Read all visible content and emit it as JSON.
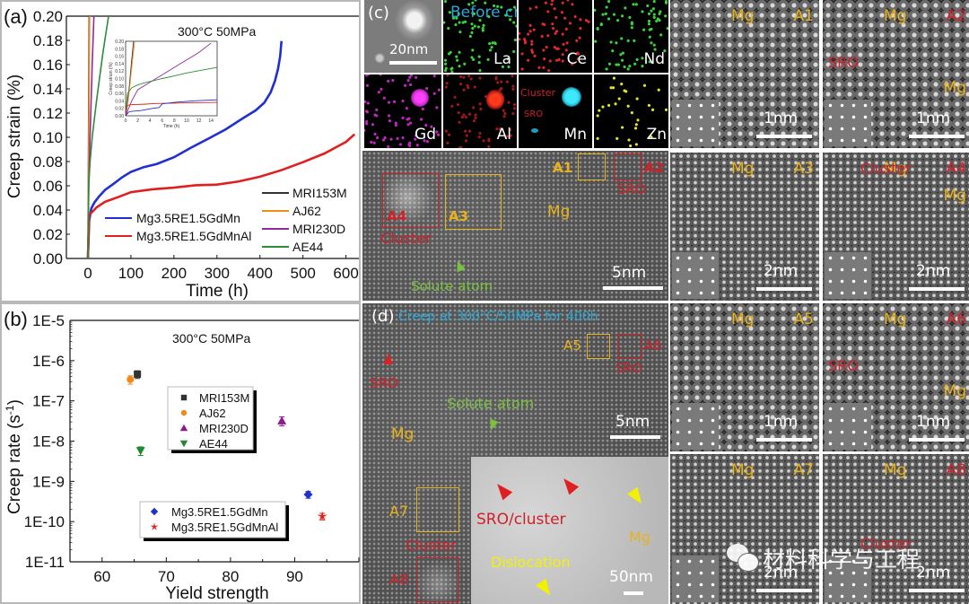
{
  "figure": {
    "panel_labels": {
      "a": "(a)",
      "b": "(b)",
      "c": "(c)",
      "d": "(d)"
    },
    "watermark": "材料科学与工程"
  },
  "chart_data": [
    {
      "id": "a",
      "type": "line",
      "title": "300°C 50MPa",
      "xlabel": "Time (h)",
      "ylabel": "Creep strain (%)",
      "xlim": [
        -50,
        630
      ],
      "ylim": [
        0,
        0.2
      ],
      "xticks": [
        0,
        100,
        200,
        300,
        400,
        500,
        600
      ],
      "yticks": [
        0.0,
        0.02,
        0.04,
        0.06,
        0.08,
        0.1,
        0.12,
        0.14,
        0.16,
        0.18,
        0.2
      ],
      "ytick_labels": [
        "0.00",
        "0.02",
        "0.04",
        "0.06",
        "0.08",
        "0.10",
        "0.12",
        "0.14",
        "0.16",
        "0.18",
        "0.20"
      ],
      "series": [
        {
          "name": "Mg3.5RE1.5GdMn",
          "color": "#1f2fd0",
          "x": [
            0,
            3,
            8,
            15,
            25,
            40,
            60,
            80,
            100,
            130,
            160,
            200,
            240,
            280,
            320,
            360,
            390,
            410,
            425,
            435,
            442,
            447,
            450
          ],
          "y": [
            0,
            0.03,
            0.04,
            0.046,
            0.052,
            0.058,
            0.062,
            0.066,
            0.07,
            0.075,
            0.079,
            0.085,
            0.092,
            0.098,
            0.105,
            0.115,
            0.123,
            0.13,
            0.138,
            0.146,
            0.155,
            0.166,
            0.18
          ]
        },
        {
          "name": "Mg3.5RE1.5GdMnAl",
          "color": "#e02020",
          "x": [
            0,
            3,
            10,
            20,
            40,
            70,
            100,
            150,
            200,
            250,
            300,
            350,
            400,
            450,
            500,
            550,
            600,
            620
          ],
          "y": [
            0,
            0.035,
            0.037,
            0.042,
            0.048,
            0.052,
            0.055,
            0.056,
            0.057,
            0.06,
            0.062,
            0.065,
            0.068,
            0.072,
            0.078,
            0.086,
            0.097,
            0.104
          ]
        },
        {
          "name": "MRI153M",
          "color": "#333333",
          "x": [
            0,
            1,
            2,
            3
          ],
          "y": [
            0,
            0.06,
            0.14,
            0.2
          ]
        },
        {
          "name": "AJ62",
          "color": "#f08a1c",
          "x": [
            0,
            1,
            2,
            3,
            4
          ],
          "y": [
            0,
            0.05,
            0.1,
            0.15,
            0.2
          ]
        },
        {
          "name": "MRI230D",
          "color": "#8e2a9e",
          "x": [
            0,
            2,
            5,
            10,
            14
          ],
          "y": [
            0,
            0.06,
            0.1,
            0.16,
            0.2
          ]
        },
        {
          "name": "AE44",
          "color": "#2e8b3a",
          "x": [
            0,
            2,
            5,
            10,
            20,
            35,
            48
          ],
          "y": [
            0,
            0.06,
            0.08,
            0.1,
            0.13,
            0.17,
            0.2
          ]
        }
      ],
      "legends": [
        {
          "position": "bottom-center",
          "entries": [
            "Mg3.5RE1.5GdMn",
            "Mg3.5RE1.5GdMnAl"
          ]
        },
        {
          "position": "bottom-right",
          "entries": [
            "MRI153M",
            "AJ62",
            "MRI230D",
            "AE44"
          ]
        }
      ],
      "inset": {
        "xlabel": "Time (h)",
        "ylabel": "Creep strain (%)",
        "xlim": [
          0,
          15
        ],
        "ylim": [
          0,
          0.2
        ],
        "xticks": [
          0,
          2,
          4,
          6,
          8,
          10,
          12,
          14
        ],
        "yticks": [
          0.0,
          0.02,
          0.04,
          0.06,
          0.08,
          0.1,
          0.12,
          0.14,
          0.16,
          0.18,
          0.2
        ],
        "ytick_labels": [
          "0.00",
          "0.02",
          "0.04",
          "0.06",
          "0.08",
          "0.10",
          "0.12",
          "0.14",
          "0.16",
          "0.18",
          "0.20"
        ],
        "series": [
          {
            "name": "MRI153M",
            "color": "#333333",
            "x": [
              0,
              0.5,
              1.0,
              1.3
            ],
            "y": [
              0,
              0.06,
              0.15,
              0.2
            ]
          },
          {
            "name": "AJ62",
            "color": "#f08a1c",
            "x": [
              0,
              0.5,
              1.0,
              1.5
            ],
            "y": [
              0,
              0.05,
              0.13,
              0.2
            ]
          },
          {
            "name": "MRI230D",
            "color": "#8e2a9e",
            "x": [
              0,
              1,
              2,
              4,
              6,
              8,
              10,
              12,
              14
            ],
            "y": [
              0,
              0.04,
              0.07,
              0.09,
              0.11,
              0.13,
              0.15,
              0.17,
              0.195
            ]
          },
          {
            "name": "AE44",
            "color": "#2e8b3a",
            "x": [
              0,
              0.3,
              1,
              2,
              3,
              4,
              6,
              8,
              10,
              12,
              15
            ],
            "y": [
              0,
              0.06,
              0.075,
              0.083,
              0.088,
              0.092,
              0.1,
              0.107,
              0.115,
              0.121,
              0.13
            ]
          },
          {
            "name": "Mg3.5RE1.5GdMnAl",
            "color": "#e02020",
            "x": [
              0,
              0.3,
              1,
              3,
              5,
              8,
              11,
              15
            ],
            "y": [
              0,
              0.028,
              0.03,
              0.031,
              0.033,
              0.034,
              0.035,
              0.036
            ]
          },
          {
            "name": "Mg3.5RE1.5GdMn",
            "color": "#1f2fd0",
            "x": [
              0,
              0.5,
              1,
              2.5,
              4.5,
              5.5,
              6,
              8,
              11,
              15
            ],
            "y": [
              0,
              0.01,
              0.012,
              0.014,
              0.02,
              0.022,
              0.032,
              0.036,
              0.04,
              0.043
            ]
          }
        ]
      }
    },
    {
      "id": "b",
      "type": "scatter",
      "title": "300°C 50MPa",
      "xlabel": "Yield strength",
      "ylabel": "Creep rate (s-1)",
      "yscale": "log",
      "xlim": [
        55,
        100
      ],
      "ylim": [
        1e-11,
        1e-05
      ],
      "xticks": [
        60,
        70,
        80,
        90
      ],
      "ytick_labels": [
        "1E-11",
        "1E-10",
        "1E-9",
        "1E-8",
        "1E-7",
        "1E-6",
        "1E-5"
      ],
      "series": [
        {
          "name": "MRI153M",
          "color": "#333333",
          "marker": "square",
          "x": [
            65.5
          ],
          "y": [
            4.6e-07
          ],
          "err_low": [
            3.6e-07
          ],
          "err_high": [
            5.6e-07
          ]
        },
        {
          "name": "AJ62",
          "color": "#f08a1c",
          "marker": "circle",
          "x": [
            64.4
          ],
          "y": [
            3.4e-07
          ],
          "err_low": [
            2.6e-07
          ],
          "err_high": [
            4.2e-07
          ]
        },
        {
          "name": "MRI230D",
          "color": "#8e1a8e",
          "marker": "triangle-up",
          "x": [
            88.0
          ],
          "y": [
            3.2e-08
          ],
          "err_low": [
            2.4e-08
          ],
          "err_high": [
            4e-08
          ]
        },
        {
          "name": "AE44",
          "color": "#1f8a2e",
          "marker": "triangle-down",
          "x": [
            66.0
          ],
          "y": [
            5.8e-09
          ],
          "err_low": [
            4.4e-09
          ],
          "err_high": [
            7.2e-09
          ]
        },
        {
          "name": "Mg3.5RE1.5GdMn",
          "color": "#1f2fd0",
          "marker": "diamond",
          "x": [
            92.1
          ],
          "y": [
            4.7e-10
          ],
          "err_low": [
            3.8e-10
          ],
          "err_high": [
            5.6e-10
          ]
        },
        {
          "name": "Mg3.5RE1.5GdMnAl",
          "color": "#e02020",
          "marker": "star",
          "x": [
            94.3
          ],
          "y": [
            1.35e-10
          ],
          "err_low": [
            1.1e-10
          ],
          "err_high": [
            1.6e-10
          ]
        }
      ],
      "legends": [
        {
          "position": "center",
          "entries": [
            "MRI153M",
            "AJ62",
            "MRI230D",
            "AE44"
          ]
        },
        {
          "position": "bottom-center",
          "entries": [
            "Mg3.5RE1.5GdMn",
            "Mg3.5RE1.5GdMnAl"
          ]
        }
      ]
    }
  ],
  "panel_c": {
    "title": "Before creep",
    "eds_maps": [
      {
        "element": "",
        "scale_bar": "20nm"
      },
      {
        "element": "La",
        "color": "#3ad23a"
      },
      {
        "element": "Ce",
        "color": "#e02828"
      },
      {
        "element": "Nd",
        "color": "#3ad23a"
      },
      {
        "element": "Gd",
        "color": "#c026c0"
      },
      {
        "element": "Al",
        "color": "#e02828"
      },
      {
        "element": "Mn",
        "color": "#20c8e8"
      },
      {
        "element": "Zn",
        "color": "#e6e620"
      }
    ],
    "mn_annotations": {
      "cluster": "Cluster",
      "sro": "SRO"
    },
    "stem": {
      "labels": {
        "mg": "Mg",
        "solute": "Solute atom",
        "cluster": "Cluster",
        "sro": "SRO"
      },
      "boxes": [
        "A1",
        "A2",
        "A3",
        "A4"
      ],
      "scale_bar": "5nm"
    }
  },
  "panel_d": {
    "title": "Creep at 300°C/50MPa for 400h",
    "labels": {
      "sro": "SRO",
      "solute": "Solute atom",
      "mg": "Mg",
      "cluster": "Cluster"
    },
    "boxes": [
      "A5",
      "A6",
      "A7",
      "A8"
    ],
    "scale_bar": "5nm",
    "inset": {
      "sro_cluster": "SRO/cluster",
      "dislocation": "Dislocation",
      "mg": "Mg",
      "scale_bar": "50nm"
    }
  },
  "hrstem_tiles": [
    {
      "id": "A1",
      "phase": "Mg",
      "note": "",
      "scale_bar": "1nm",
      "id_color": "yellow"
    },
    {
      "id": "A2",
      "phase": "Mg",
      "note": "SRO",
      "scale_bar": "1nm",
      "id_color": "red"
    },
    {
      "id": "A3",
      "phase": "Mg",
      "note": "",
      "scale_bar": "2nm",
      "id_color": "yellow"
    },
    {
      "id": "A4",
      "phase": "Mg",
      "note": "Cluster",
      "scale_bar": "2nm",
      "id_color": "red"
    },
    {
      "id": "A5",
      "phase": "Mg",
      "note": "",
      "scale_bar": "1nm",
      "id_color": "yellow"
    },
    {
      "id": "A6",
      "phase": "Mg",
      "note": "SRO",
      "scale_bar": "1nm",
      "id_color": "red"
    },
    {
      "id": "A7",
      "phase": "Mg",
      "note": "",
      "scale_bar": "2nm",
      "id_color": "yellow"
    },
    {
      "id": "A8",
      "phase": "Mg",
      "note": "Cluster",
      "scale_bar": "2nm",
      "id_color": "red"
    }
  ]
}
